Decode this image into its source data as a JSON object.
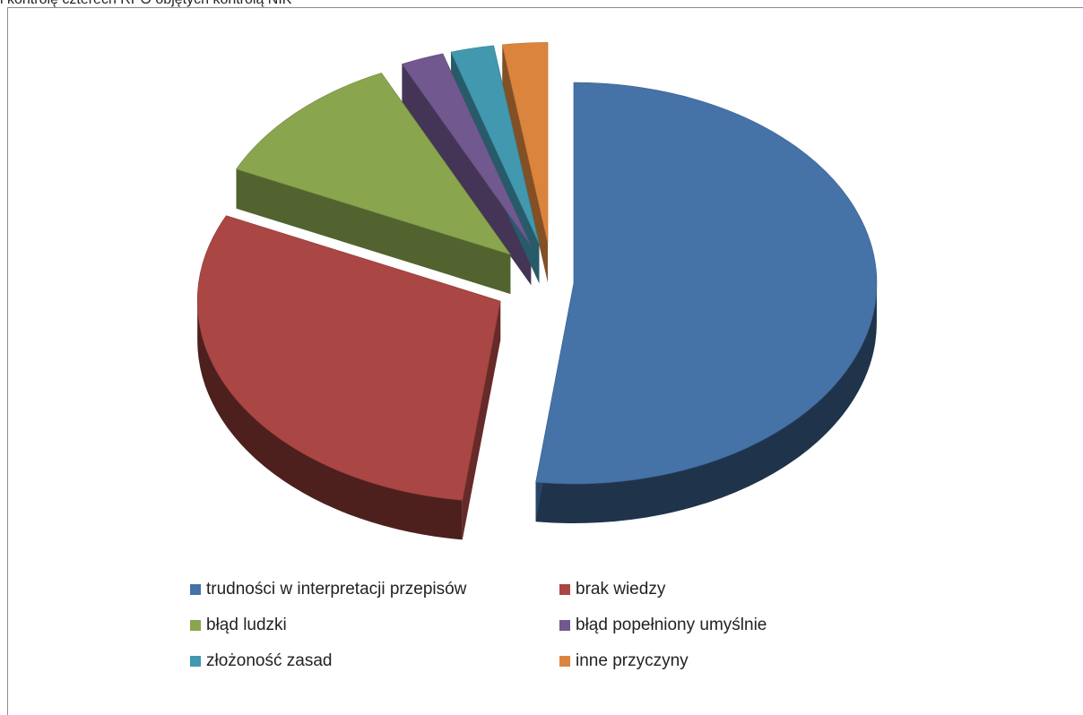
{
  "header": {
    "title": "i kontrolę czterech RPO objętych kontrolą NIK"
  },
  "chart_data": {
    "type": "pie",
    "style": "3d-exploded",
    "title": "",
    "legend_position": "bottom",
    "slices": [
      {
        "label": "trudności w interpretacji przepisów",
        "value": 52,
        "color": "#4572A7"
      },
      {
        "label": "brak wiedzy",
        "value": 30,
        "color": "#AA4643"
      },
      {
        "label": "błąd ludzki",
        "value": 11,
        "color": "#89A54E"
      },
      {
        "label": "błąd popełniony umyślnie",
        "value": 2.3,
        "color": "#71588F"
      },
      {
        "label": "złożoność zasad",
        "value": 2.3,
        "color": "#4198AF"
      },
      {
        "label": "inne przyczyny",
        "value": 2.4,
        "color": "#DB843D"
      }
    ]
  }
}
